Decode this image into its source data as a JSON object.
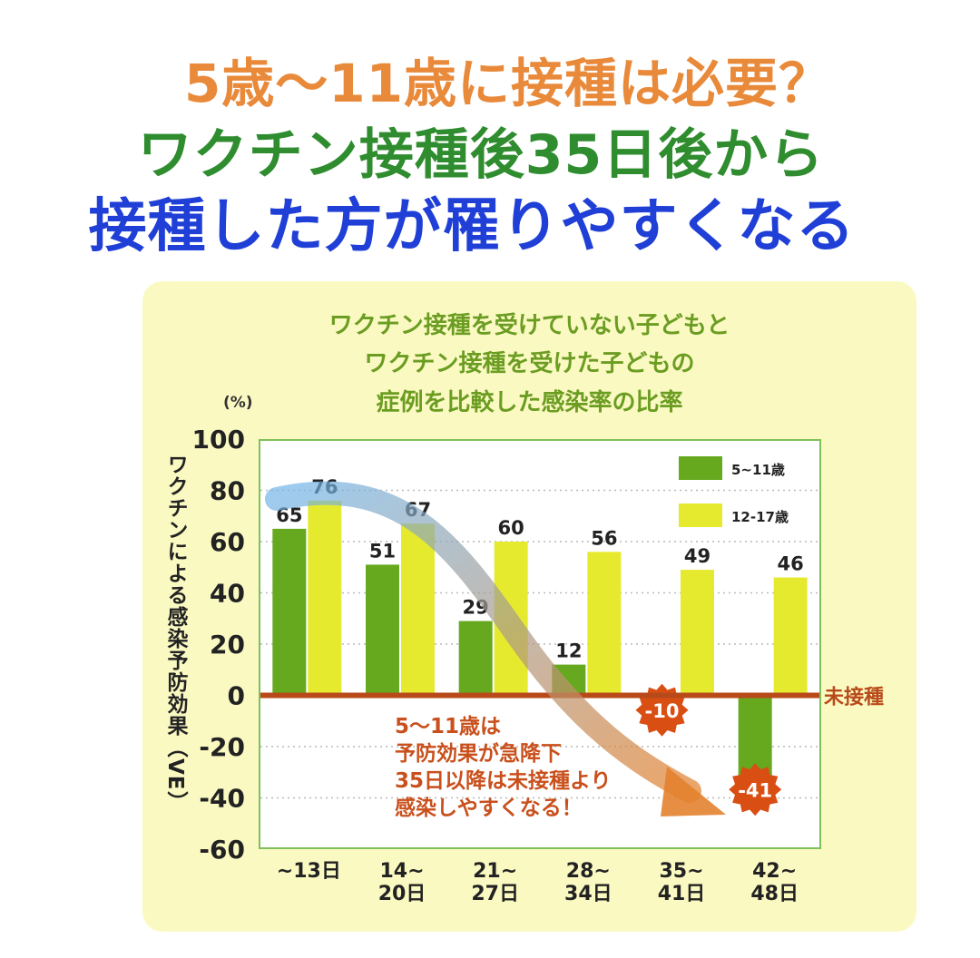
{
  "headline": {
    "line1": "5歳～11歳に接種は必要？",
    "line2": "ワクチン接種後35日後から",
    "line3": "接種した方が罹りやすくなる"
  },
  "colors": {
    "line1": "#e9893a",
    "line2": "#2f8d2f",
    "line3": "#1f3fd6",
    "series_5_11": "#66a81e",
    "series_12_17": "#e6ea2e",
    "baseline": "#b84a1a",
    "panel": "#fbf9c2"
  },
  "chart_data": {
    "type": "bar",
    "title_lines": [
      "ワクチン接種を受けていない子どもと",
      "ワクチン接種を受けた子どもの",
      "症例を比較した感染率の比率"
    ],
    "ylabel": "ワクチンによる感染予防効果（VE）",
    "yunit": "(%)",
    "ylim": [
      -60,
      100
    ],
    "yticks": [
      100,
      80,
      60,
      40,
      20,
      0,
      -20,
      -40,
      -60
    ],
    "categories": [
      [
        "~13日"
      ],
      [
        "14~",
        "20日"
      ],
      [
        "21~",
        "27日"
      ],
      [
        "28~",
        "34日"
      ],
      [
        "35~",
        "41日"
      ],
      [
        "42~",
        "48日"
      ]
    ],
    "series": [
      {
        "name": "5~11歳",
        "values": [
          65,
          51,
          29,
          12,
          -10,
          -41
        ]
      },
      {
        "name": "12-17歳",
        "values": [
          76,
          67,
          60,
          56,
          49,
          46
        ]
      }
    ],
    "baseline_label": "未接種",
    "legend_position": "top-right",
    "grid": true,
    "annotation": [
      "5～11歳は",
      "予防効果が急降下",
      "35日以降は未接種より",
      "感染しやすくなる！"
    ]
  }
}
